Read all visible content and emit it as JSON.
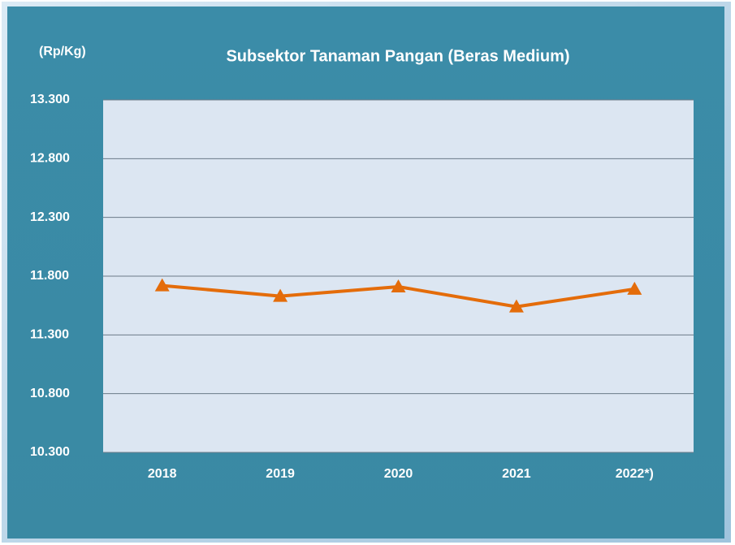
{
  "chart_data": {
    "type": "line",
    "title": "Subsektor Tanaman Pangan (Beras Medium)",
    "y_label": "(Rp/Kg)",
    "categories": [
      "2018",
      "2019",
      "2020",
      "2021",
      "2022*)"
    ],
    "series": [
      {
        "name": "Beras Medium",
        "color": "#e46c0a",
        "values": [
          11720,
          11630,
          11710,
          11540,
          11690
        ]
      }
    ],
    "ylim": [
      10300,
      13300
    ],
    "yticks": [
      {
        "value": 10300,
        "label": "10.300"
      },
      {
        "value": 10800,
        "label": "10.800"
      },
      {
        "value": 11300,
        "label": "11.300"
      },
      {
        "value": 11800,
        "label": "11.800"
      },
      {
        "value": 12300,
        "label": "12.300"
      },
      {
        "value": 12800,
        "label": "12.800"
      },
      {
        "value": 13300,
        "label": "13.300"
      }
    ],
    "grid": true
  }
}
